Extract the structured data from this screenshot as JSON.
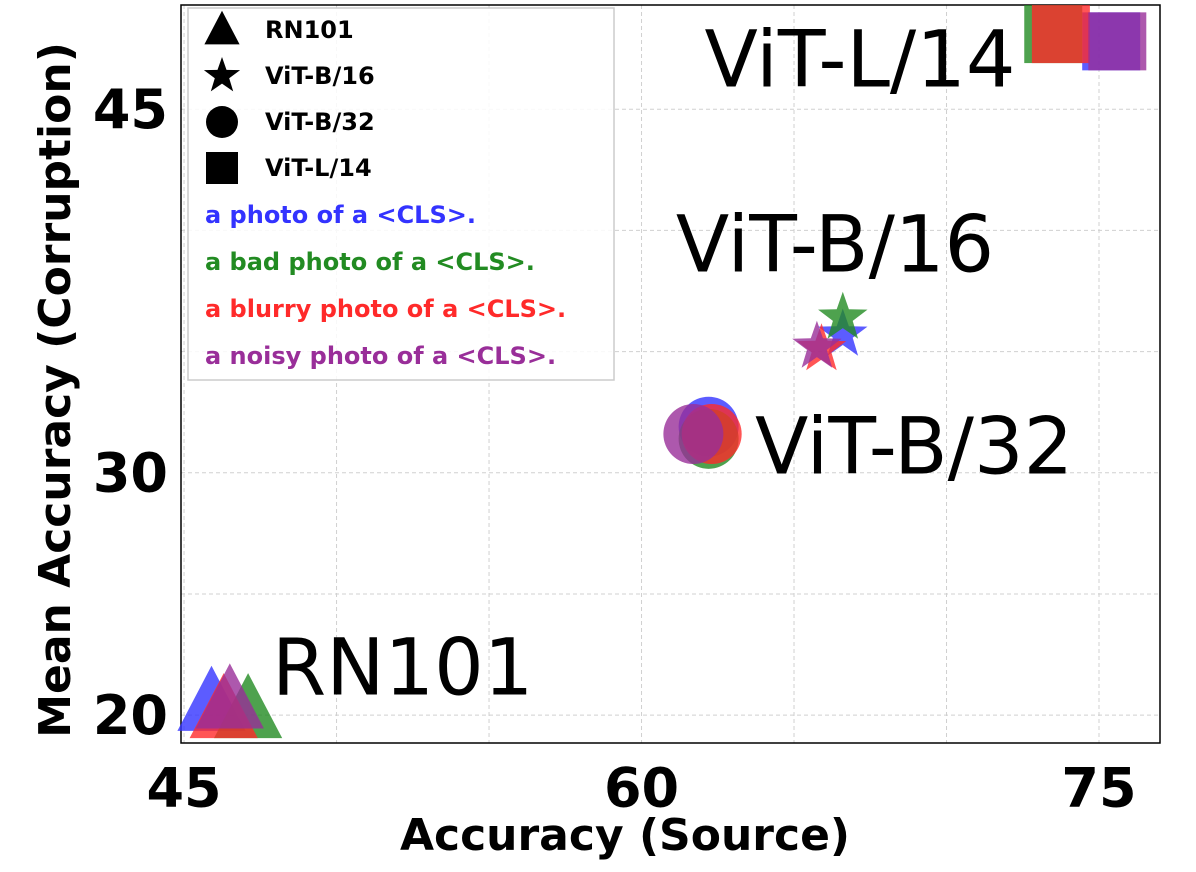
{
  "chart_data": {
    "type": "scatter",
    "x_label": "Accuracy (Source)",
    "y_label": "Mean Accuracy (Corruption)",
    "xlim": [
      44.9,
      77
    ],
    "ylim": [
      18.85,
      49.3
    ],
    "xticks": [
      45,
      60,
      75
    ],
    "yticks": [
      20,
      30,
      45
    ],
    "xminor": [
      50,
      55,
      65,
      70
    ],
    "yminor": [
      25,
      35,
      40
    ],
    "grid": true,
    "markers": [
      {
        "name": "RN101",
        "shape": "triangle"
      },
      {
        "name": "ViT-B/16",
        "shape": "star"
      },
      {
        "name": "ViT-B/32",
        "shape": "circle"
      },
      {
        "name": "ViT-L/14",
        "shape": "square"
      }
    ],
    "annotations": [
      "RN101",
      "ViT-B/16",
      "ViT-B/32",
      "ViT-L/14"
    ],
    "series": [
      {
        "name": "a photo of a <CLS>.",
        "color": "#3333ff",
        "x": [
          45.9,
          66.6,
          62.2,
          75.4
        ],
        "y": [
          20.5,
          35.7,
          31.9,
          47.8
        ]
      },
      {
        "name": "a bad photo of a <CLS>.",
        "color": "#228b22",
        "x": [
          47.1,
          66.6,
          62.2,
          73.5
        ],
        "y": [
          20.2,
          36.4,
          31.4,
          48.1
        ]
      },
      {
        "name": "a blurry photo of a <CLS>.",
        "color": "#ff2a2a",
        "x": [
          46.3,
          65.9,
          62.3,
          73.75
        ],
        "y": [
          20.2,
          35.1,
          31.6,
          48.1
        ]
      },
      {
        "name": "a noisy photo of a <CLS>.",
        "color": "#992e99",
        "x": [
          46.5,
          65.75,
          61.7,
          75.6
        ],
        "y": [
          20.6,
          35.2,
          31.6,
          47.8
        ]
      }
    ]
  }
}
